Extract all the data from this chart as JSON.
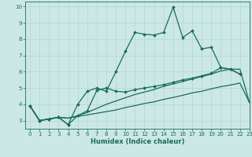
{
  "xlabel": "Humidex (Indice chaleur)",
  "bg_color": "#cce8e4",
  "grid_color": "#a8d4cf",
  "line_color": "#1a6b60",
  "xlim": [
    -0.5,
    23
  ],
  "ylim": [
    2.5,
    10.3
  ],
  "yticks": [
    3,
    4,
    5,
    6,
    7,
    8,
    9,
    10
  ],
  "xticks": [
    0,
    1,
    2,
    3,
    4,
    5,
    6,
    7,
    8,
    9,
    10,
    11,
    12,
    13,
    14,
    15,
    16,
    17,
    18,
    19,
    20,
    21,
    22,
    23
  ],
  "lines": [
    {
      "x": [
        0,
        1,
        2,
        3,
        4,
        5,
        6,
        7,
        8,
        9,
        10,
        11,
        12,
        13,
        14,
        15,
        16,
        17,
        18,
        19,
        20,
        21,
        22
      ],
      "y": [
        3.9,
        3.0,
        3.1,
        3.2,
        2.75,
        4.0,
        4.8,
        5.0,
        4.8,
        6.0,
        7.25,
        8.4,
        8.3,
        8.25,
        8.4,
        9.95,
        8.1,
        8.5,
        7.4,
        7.5,
        6.25,
        6.15,
        5.85
      ],
      "marker": "D",
      "lw": 0.9
    },
    {
      "x": [
        0,
        1,
        2,
        3,
        4,
        5,
        6,
        7,
        8,
        9,
        10,
        11,
        12,
        13,
        14,
        15,
        16,
        17,
        18,
        19,
        20,
        21,
        22
      ],
      "y": [
        3.9,
        3.0,
        3.1,
        3.2,
        2.75,
        3.3,
        3.6,
        4.85,
        5.0,
        4.8,
        4.75,
        4.9,
        5.0,
        5.1,
        5.2,
        5.35,
        5.5,
        5.6,
        5.75,
        5.9,
        6.25,
        6.15,
        5.85
      ],
      "marker": "D",
      "lw": 0.9
    },
    {
      "x": [
        0,
        1,
        2,
        3,
        4,
        5,
        6,
        7,
        8,
        9,
        10,
        11,
        12,
        13,
        14,
        15,
        16,
        17,
        18,
        19,
        20,
        21,
        22,
        23
      ],
      "y": [
        3.9,
        3.0,
        3.1,
        3.2,
        3.15,
        3.3,
        3.5,
        3.75,
        4.0,
        4.2,
        4.4,
        4.6,
        4.75,
        4.9,
        5.1,
        5.25,
        5.4,
        5.55,
        5.7,
        5.85,
        6.05,
        6.15,
        6.15,
        4.1
      ],
      "marker": null,
      "lw": 0.9
    },
    {
      "x": [
        0,
        1,
        2,
        3,
        4,
        5,
        6,
        7,
        8,
        9,
        10,
        11,
        12,
        13,
        14,
        15,
        16,
        17,
        18,
        19,
        20,
        21,
        22,
        23
      ],
      "y": [
        3.9,
        3.0,
        3.1,
        3.2,
        3.15,
        3.25,
        3.35,
        3.45,
        3.55,
        3.65,
        3.8,
        3.92,
        4.05,
        4.15,
        4.3,
        4.42,
        4.55,
        4.7,
        4.8,
        4.95,
        5.08,
        5.18,
        5.3,
        4.1
      ],
      "marker": null,
      "lw": 0.9
    }
  ],
  "marker_size": 2.0,
  "tick_labelsize": 5,
  "xlabel_fontsize": 6
}
